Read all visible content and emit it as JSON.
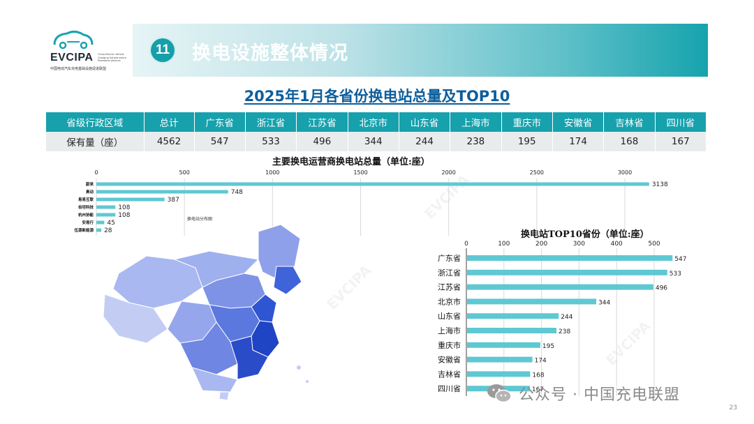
{
  "brand": {
    "name": "EVCIPA",
    "name_en": "China Electric Vehicle Charging Infrastructure Promotion Alliance",
    "name_cn": "中国电动汽车充电基础设施促进联盟"
  },
  "header": {
    "number": "11",
    "title": "换电设施整体情况"
  },
  "section_title": "2025年1月各省份换电站总量及TOP10",
  "summary_table": {
    "header": [
      "省级行政区域",
      "总计",
      "广东省",
      "浙江省",
      "江苏省",
      "北京市",
      "山东省",
      "上海市",
      "重庆市",
      "安徽省",
      "吉林省",
      "四川省"
    ],
    "row": [
      "保有量（座）",
      "4562",
      "547",
      "533",
      "496",
      "344",
      "244",
      "238",
      "195",
      "174",
      "168",
      "167"
    ]
  },
  "map_label": "换电站分布图",
  "chart_data": [
    {
      "type": "bar",
      "orientation": "horizontal",
      "title": "主要换电运营商换电站总量（单位:座）",
      "categories": [
        "蔚来",
        "奥动",
        "易易互联",
        "伯坦科技",
        "杭州协能",
        "安易行",
        "伍源新能源"
      ],
      "values": [
        3138,
        748,
        387,
        108,
        108,
        45,
        28
      ],
      "xlim": [
        0,
        3000
      ],
      "xticks": [
        0,
        500,
        1000,
        1500,
        2000,
        2500,
        3000
      ],
      "grid": true,
      "color": "#5ec8d3"
    },
    {
      "type": "bar",
      "orientation": "horizontal",
      "title": "换电站TOP10省份（单位:座）",
      "categories": [
        "广东省",
        "浙江省",
        "江苏省",
        "北京市",
        "山东省",
        "上海市",
        "重庆市",
        "安徽省",
        "吉林省",
        "四川省"
      ],
      "values": [
        547,
        533,
        496,
        344,
        244,
        238,
        195,
        174,
        168,
        167
      ],
      "xlim": [
        0,
        500
      ],
      "xticks": [
        0,
        100,
        200,
        300,
        400,
        500
      ],
      "grid": true,
      "color": "#5ec8d3"
    }
  ],
  "footer": {
    "wechat": "公众号 · 中国充电联盟",
    "page": "23"
  },
  "colors": {
    "teal": "#16a1ad",
    "bar": "#5ec8d3",
    "title_blue": "#0d5e9c"
  }
}
